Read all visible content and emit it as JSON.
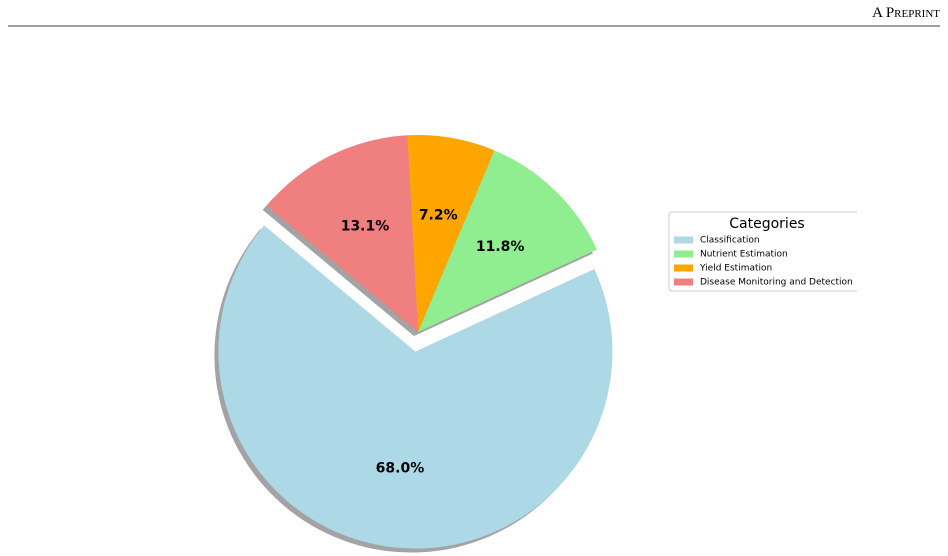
{
  "header": {
    "running_title": "A Preprint"
  },
  "chart_data": {
    "type": "pie",
    "categories": [
      "Classification",
      "Nutrient Estimation",
      "Yield Estimation",
      "Disease Monitoring and Detection"
    ],
    "values": [
      68.0,
      11.8,
      7.2,
      13.1
    ],
    "value_labels": [
      "68.0%",
      "11.8%",
      "7.2%",
      "13.1%"
    ],
    "colors": [
      "#add8e6",
      "#90ee90",
      "#ffa500",
      "#f08080"
    ],
    "exploded": "Classification",
    "shadow": true,
    "legend_title": "Categories",
    "legend": "right"
  }
}
